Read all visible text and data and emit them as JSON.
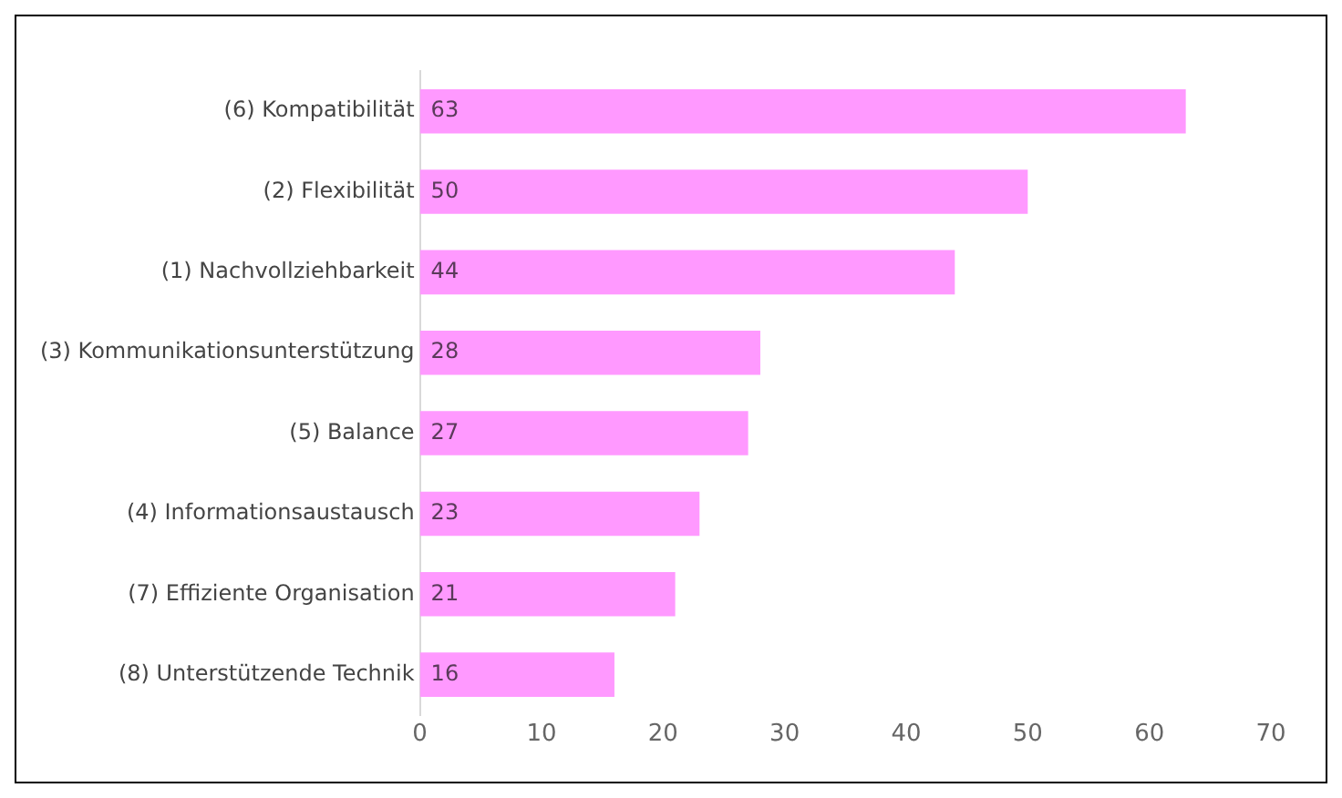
{
  "chart_data": {
    "type": "bar",
    "orientation": "horizontal",
    "categories": [
      "(6) Kompatibilität",
      "(2) Flexibilität",
      "(1) Nachvollziehbarkeit",
      "(3) Kommunikationsunterstützung",
      "(5) Balance",
      "(4) Informationsaustausch",
      "(7) Effiziente Organisation",
      "(8) Unterstützende Technik"
    ],
    "values": [
      63,
      50,
      44,
      28,
      27,
      23,
      21,
      16
    ],
    "color": "#ff99ff",
    "xlim": [
      0,
      70
    ],
    "xticks": [
      0,
      10,
      20,
      30,
      40,
      50,
      60,
      70
    ],
    "grid": false,
    "legend": false,
    "data_labels": true
  }
}
